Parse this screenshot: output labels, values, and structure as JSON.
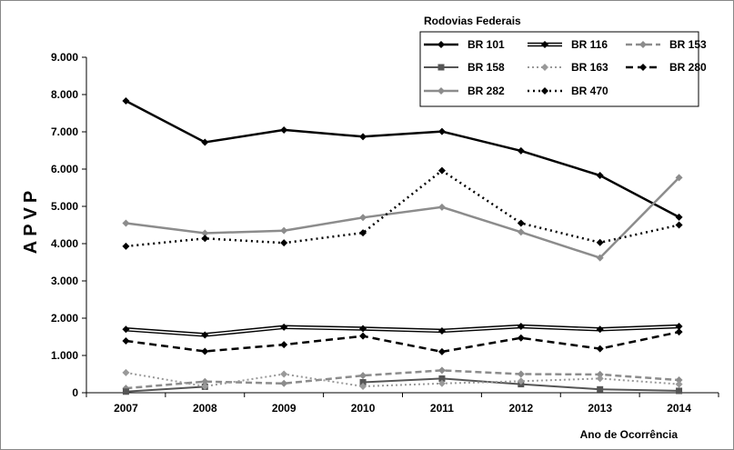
{
  "chart_data": {
    "type": "line",
    "ylabel": "APVP",
    "xlabel": "Ano de Ocorrência",
    "legend_title": "Rodovias Federais",
    "legend_position": "top-right",
    "grid": false,
    "ylim": [
      0,
      9000
    ],
    "yticks": [
      "0",
      "1.000",
      "2.000",
      "3.000",
      "4.000",
      "5.000",
      "6.000",
      "7.000",
      "8.000",
      "9.000"
    ],
    "ytick_values": [
      0,
      1000,
      2000,
      3000,
      4000,
      5000,
      6000,
      7000,
      8000,
      9000
    ],
    "categories": [
      "2007",
      "2008",
      "2009",
      "2010",
      "2011",
      "2012",
      "2013",
      "2014"
    ],
    "series": [
      {
        "name": "BR 101",
        "color": "#000000",
        "style": "solid-thick",
        "marker": "diamond",
        "values": [
          7830,
          6720,
          7050,
          6870,
          7010,
          6490,
          5830,
          4710
        ]
      },
      {
        "name": "BR 116",
        "color": "#000000",
        "style": "double",
        "marker": "diamond",
        "values": [
          1700,
          1550,
          1760,
          1720,
          1660,
          1780,
          1700,
          1780
        ]
      },
      {
        "name": "BR 153",
        "color": "#8c8c8c",
        "style": "dashed",
        "marker": "diamond",
        "values": [
          120,
          300,
          250,
          460,
          600,
          500,
          490,
          340
        ]
      },
      {
        "name": "BR 158",
        "color": "#555555",
        "style": "solid",
        "marker": "square",
        "values": [
          30,
          160,
          null,
          280,
          380,
          230,
          90,
          50
        ]
      },
      {
        "name": "BR 163",
        "color": "#999999",
        "style": "dotted",
        "marker": "diamond",
        "values": [
          540,
          170,
          500,
          170,
          250,
          310,
          380,
          230
        ]
      },
      {
        "name": "BR 280",
        "color": "#000000",
        "style": "dashed-thick",
        "marker": "diamond",
        "values": [
          1390,
          1110,
          1290,
          1520,
          1100,
          1470,
          1180,
          1630
        ]
      },
      {
        "name": "BR 282",
        "color": "#8c8c8c",
        "style": "solid-thick",
        "marker": "diamond",
        "values": [
          4550,
          4280,
          4350,
          4700,
          4980,
          4310,
          3620,
          5770
        ]
      },
      {
        "name": "BR 470",
        "color": "#000000",
        "style": "dotted-thick",
        "marker": "diamond",
        "values": [
          3930,
          4140,
          4020,
          4290,
          5960,
          4550,
          4030,
          4500
        ]
      }
    ]
  }
}
